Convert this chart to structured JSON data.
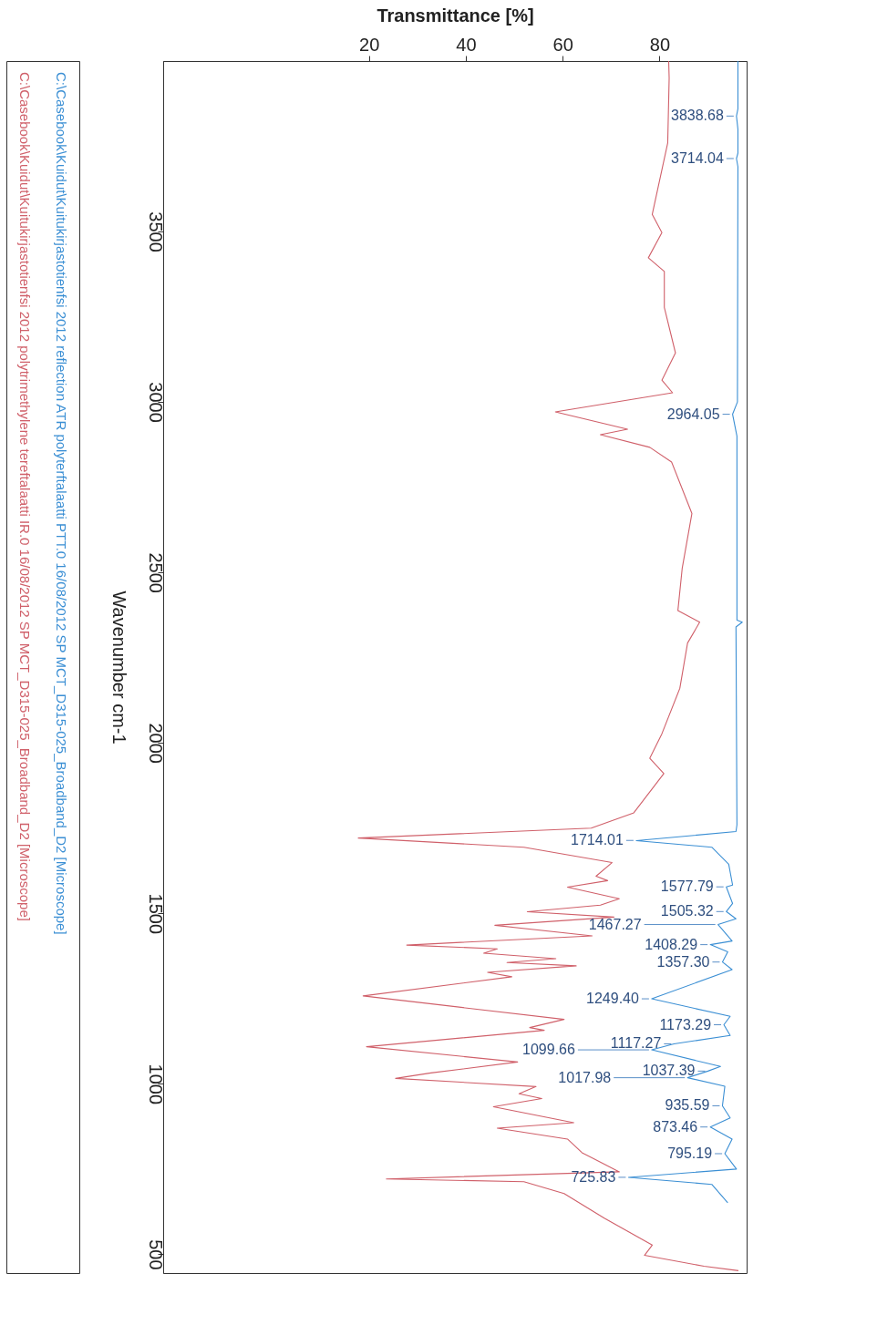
{
  "chart_data": {
    "type": "line",
    "orientation": "horizontal",
    "ylabel": "Wavenumber cm-1",
    "xlabel": "Transmittance [%]",
    "ylim": [
      445,
      4000
    ],
    "yticks": [
      3500,
      3000,
      2500,
      2000,
      1500,
      1000,
      500
    ],
    "xlim": [
      -22.5,
      98
    ],
    "xticks": [
      20,
      40,
      60,
      80
    ],
    "legend": "left",
    "series": [
      {
        "name": "C:\\Casebook\\Kuidut\\Kuitukirjastotienfsi 2012   polytrimethylene tereftalaatti IR.0   16/08/2012   SP   MCT_D315-025_Broadband_D2 [Microscope]",
        "color": "#d0606a",
        "x": [
          4000,
          3950,
          3760,
          3550,
          3497,
          3423,
          3383,
          3277,
          3144,
          3064,
          3027,
          2971,
          2920,
          2904,
          2867,
          2824,
          2673,
          2513,
          2388,
          2354,
          2293,
          2160,
          2027,
          1955,
          1910,
          1795,
          1750,
          1721,
          1694,
          1649,
          1609,
          1596,
          1577,
          1543,
          1524,
          1505,
          1489,
          1465,
          1434,
          1407,
          1396,
          1383,
          1367,
          1356,
          1346,
          1327,
          1314,
          1258,
          1189,
          1165,
          1157,
          1109,
          1064,
          1032,
          1016,
          992,
          971,
          957,
          933,
          886,
          870,
          838,
          798,
          742,
          721,
          713,
          678,
          606,
          527,
          497,
          465,
          452
        ],
        "values": [
          81.9,
          82,
          81.7,
          78.5,
          80.5,
          77.7,
          81,
          81,
          83.3,
          80.5,
          82.7,
          58.5,
          73.4,
          67.8,
          78,
          82.5,
          86.7,
          84.7,
          83.8,
          88.3,
          85.8,
          84.2,
          80.5,
          78,
          80.9,
          74.7,
          65.9,
          17.8,
          52,
          70.2,
          66.9,
          69.3,
          61,
          71.7,
          67.8,
          52.7,
          70.6,
          46,
          66.1,
          27.8,
          46.5,
          43.7,
          58.6,
          48.5,
          62.8,
          44.5,
          49.5,
          18.8,
          60.3,
          53.2,
          56.2,
          19.5,
          50.7,
          32.8,
          25.5,
          54.5,
          51,
          55.7,
          45.7,
          62.3,
          46.5,
          61,
          64,
          71.7,
          23.6,
          52,
          60.3,
          68.6,
          78.5,
          76.9,
          89.2,
          96.3
        ]
      },
      {
        "name": "C:\\Casebook\\Kuidut\\Kuitukirjastotienfsi 2012   reflection ATR   polyterftalaatti PTT.0   16/08/2012   SP   MCT_D315-025_Broadband_D2 [Microscope]",
        "color": "#3b8fd4",
        "x": [
          4000,
          3860,
          3838.68,
          3800,
          3730,
          3714.04,
          3690,
          3000,
          2964.05,
          2900,
          2360,
          2354,
          2340,
          1760,
          1740,
          1713.5,
          1694,
          1644,
          1583,
          1577.79,
          1529,
          1505.32,
          1484,
          1467.27,
          1419,
          1408.29,
          1387,
          1357.3,
          1335,
          1249.4,
          1198,
          1173.29,
          1142,
          1117.27,
          1099.66,
          1051,
          1037.39,
          1017.98,
          993,
          935.59,
          900,
          873.46,
          838,
          795.19,
          750,
          725.83,
          705,
          651
        ],
        "values": [
          96.2,
          96.2,
          95.9,
          96.2,
          96.2,
          95.9,
          96.2,
          96.1,
          95.1,
          96,
          96,
          97.1,
          95.8,
          96,
          95.8,
          75.2,
          90.8,
          94.3,
          95.1,
          93.8,
          95.1,
          93.8,
          95.8,
          92.1,
          95,
          90.5,
          94.1,
          93,
          95,
          78.4,
          94.6,
          93.3,
          94.6,
          83,
          78.4,
          92.6,
          90,
          85.8,
          93.5,
          93,
          94.6,
          90.5,
          95,
          93.5,
          95.9,
          73.6,
          90.8,
          94.1
        ]
      }
    ],
    "annotations": [
      {
        "text": "3838.68",
        "y": 3838.68,
        "x": 95.9
      },
      {
        "text": "3714.04",
        "y": 3714.04,
        "x": 95.9
      },
      {
        "text": "2964.05",
        "y": 2964.05,
        "x": 95.1
      },
      {
        "text": "1714.01",
        "y": 1714.01,
        "x": 75.2
      },
      {
        "text": "1577.79",
        "y": 1577.79,
        "x": 93.8
      },
      {
        "text": "1505.32",
        "y": 1505.32,
        "x": 93.8
      },
      {
        "text": "1467.27",
        "y": 1467.27,
        "x": 92.1
      },
      {
        "text": "1408.29",
        "y": 1408.29,
        "x": 90.5
      },
      {
        "text": "1357.30",
        "y": 1357.3,
        "x": 93
      },
      {
        "text": "1249.40",
        "y": 1249.4,
        "x": 78.4
      },
      {
        "text": "1173.29",
        "y": 1173.29,
        "x": 93.3
      },
      {
        "text": "1117.27",
        "y": 1117.27,
        "x": 83
      },
      {
        "text": "1099.66",
        "y": 1099.66,
        "x": 78.4
      },
      {
        "text": "1037.39",
        "y": 1037.39,
        "x": 90
      },
      {
        "text": "1017.98",
        "y": 1017.98,
        "x": 85.8
      },
      {
        "text": "935.59",
        "y": 935.59,
        "x": 93
      },
      {
        "text": "873.46",
        "y": 873.46,
        "x": 90.5
      },
      {
        "text": "795.19",
        "y": 795.19,
        "x": 93.5
      },
      {
        "text": "725.83",
        "y": 725.83,
        "x": 73.6
      }
    ]
  }
}
